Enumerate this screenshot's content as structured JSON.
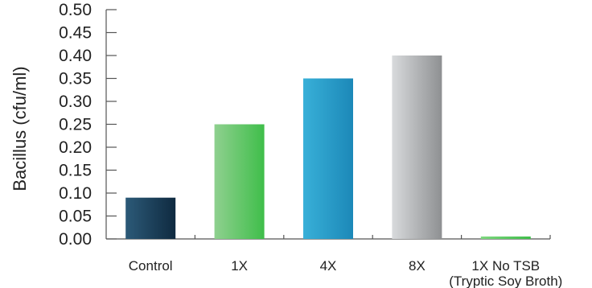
{
  "chart_data": {
    "type": "bar",
    "title": "",
    "xlabel": "",
    "ylabel": "Bacillus (cfu/ml)",
    "ylim": [
      0,
      0.5
    ],
    "yticks": [
      "0.00",
      "0.05",
      "0.10",
      "0.15",
      "0.20",
      "0.25",
      "0.30",
      "0.35",
      "0.40",
      "0.45",
      "0.50"
    ],
    "categories": [
      {
        "lines": [
          "Control"
        ]
      },
      {
        "lines": [
          "1X"
        ]
      },
      {
        "lines": [
          "4X"
        ]
      },
      {
        "lines": [
          "8X"
        ]
      },
      {
        "lines": [
          "1X No TSB",
          "(Tryptic Soy Broth)"
        ]
      }
    ],
    "values": [
      0.09,
      0.25,
      0.35,
      0.4,
      0.005
    ],
    "bar_colors": [
      [
        "#2c5a78",
        "#0f2a40"
      ],
      [
        "#8fd08f",
        "#3fbe4a"
      ],
      [
        "#38b0d8",
        "#1c88b8"
      ],
      [
        "#d8dadc",
        "#8e9092"
      ],
      [
        "#7fd880",
        "#3fbe4a"
      ]
    ],
    "grid": false,
    "legend": "none"
  }
}
